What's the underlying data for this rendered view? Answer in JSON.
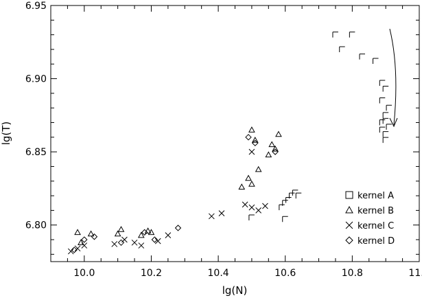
{
  "chart_data": {
    "type": "scatter",
    "title": "",
    "xlabel": "lg(N)",
    "ylabel": "lg(T)",
    "xlim": [
      9.9,
      11.0
    ],
    "ylim": [
      6.775,
      6.95
    ],
    "xticks": [
      10.0,
      10.2,
      10.4,
      10.6,
      10.8,
      11.0
    ],
    "xtick_labels": [
      "10.0",
      "10.2",
      "10.4",
      "10.6",
      "10.8",
      "11.0"
    ],
    "yticks": [
      6.8,
      6.85,
      6.9,
      6.95
    ],
    "ytick_labels": [
      "6.80",
      "6.85",
      "6.90",
      "6.95"
    ],
    "grid": false,
    "legend_position": "bottom-right",
    "series": [
      {
        "name": "kernel A",
        "marker": "square-corner",
        "x": [
          10.75,
          10.77,
          10.8,
          10.83,
          10.87,
          10.89,
          10.9,
          10.89,
          10.91,
          10.9,
          10.89,
          10.91,
          10.9,
          10.9,
          10.89,
          10.9,
          10.5,
          10.59,
          10.6,
          10.61,
          10.62,
          10.63,
          10.64,
          10.6
        ],
        "y": [
          6.93,
          6.92,
          6.93,
          6.915,
          6.912,
          6.897,
          6.893,
          6.885,
          6.88,
          6.875,
          6.87,
          6.867,
          6.862,
          6.858,
          6.865,
          6.871,
          6.805,
          6.812,
          6.815,
          6.817,
          6.82,
          6.822,
          6.82,
          6.804
        ]
      },
      {
        "name": "kernel B",
        "marker": "triangle",
        "x": [
          9.98,
          9.99,
          10.02,
          10.1,
          10.11,
          10.17,
          10.19,
          10.2,
          10.47,
          10.49,
          10.5,
          10.52,
          10.55,
          10.56,
          10.57,
          10.58,
          10.5,
          10.51
        ],
        "y": [
          6.795,
          6.788,
          6.794,
          6.794,
          6.797,
          6.793,
          6.796,
          6.795,
          6.826,
          6.832,
          6.828,
          6.838,
          6.848,
          6.855,
          6.852,
          6.862,
          6.865,
          6.858
        ]
      },
      {
        "name": "kernel C",
        "marker": "x",
        "x": [
          9.96,
          9.98,
          10.0,
          10.09,
          10.12,
          10.15,
          10.17,
          10.22,
          10.25,
          10.38,
          10.41,
          10.48,
          10.5,
          10.52,
          10.54,
          10.5
        ],
        "y": [
          6.782,
          6.784,
          6.786,
          6.787,
          6.79,
          6.788,
          6.786,
          6.789,
          6.793,
          6.806,
          6.808,
          6.814,
          6.812,
          6.81,
          6.813,
          6.85
        ]
      },
      {
        "name": "kernel D",
        "marker": "diamond",
        "x": [
          9.97,
          10.0,
          10.03,
          10.11,
          10.18,
          10.21,
          10.28,
          10.49,
          10.51,
          10.57
        ],
        "y": [
          6.783,
          6.79,
          6.792,
          6.788,
          6.795,
          6.79,
          6.798,
          6.86,
          6.856,
          6.85
        ]
      }
    ]
  }
}
